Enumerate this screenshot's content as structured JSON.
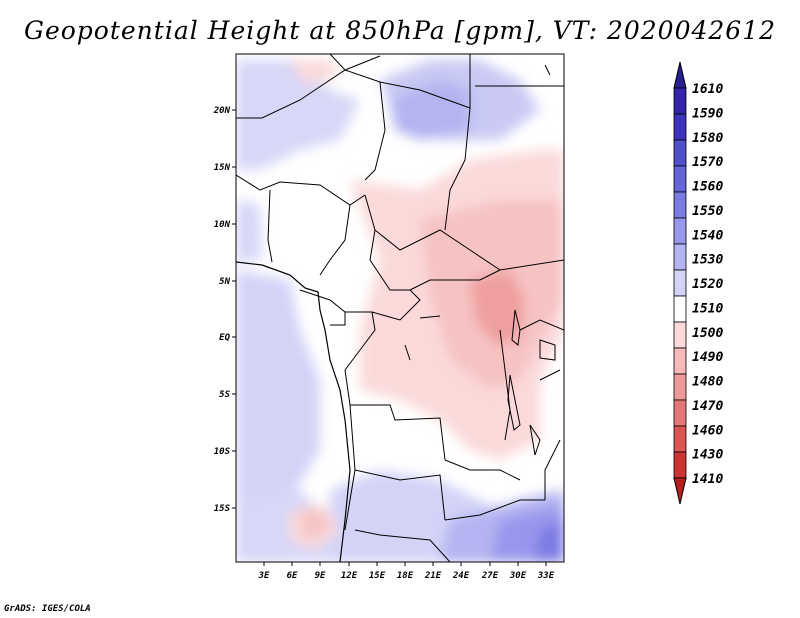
{
  "title": "Geopotential Height at 850hPa [gpm], VT: 2020042612",
  "credit": "GrADS: IGES/COLA",
  "map": {
    "lat_labels": [
      "20N",
      "15N",
      "10N",
      "5N",
      "EQ",
      "5S",
      "10S",
      "15S"
    ],
    "lon_labels": [
      "3E",
      "6E",
      "9E",
      "12E",
      "15E",
      "18E",
      "21E",
      "24E",
      "27E",
      "30E",
      "33E"
    ],
    "background_color": "#fdfdfd"
  },
  "colorbar": {
    "levels": [
      "1610",
      "1590",
      "1580",
      "1570",
      "1560",
      "1550",
      "1540",
      "1530",
      "1520",
      "1510",
      "1500",
      "1490",
      "1480",
      "1470",
      "1460",
      "1430",
      "1410"
    ],
    "colors": [
      "#2a1f8f",
      "#3324a8",
      "#3e33bd",
      "#5050cc",
      "#6565d8",
      "#7b7be3",
      "#9797ec",
      "#b4b4f2",
      "#d3d3f8",
      "#ffffff",
      "#fbd9d9",
      "#f6b9b9",
      "#ef9999",
      "#e57777",
      "#db5555",
      "#cd3333",
      "#b81f1f"
    ]
  },
  "legend_summary": {
    "high_heights_color": "#5050cc",
    "low_heights_color": "#db5555"
  }
}
